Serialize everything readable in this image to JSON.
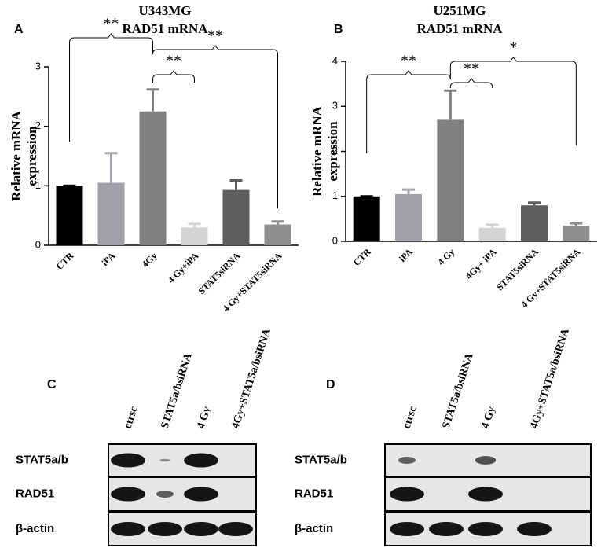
{
  "chart_data": [
    {
      "type": "bar",
      "panel_label": "A",
      "title": "U343MG",
      "subtitle": "RAD51 mRNA",
      "ylabel": [
        "Relative mRNA",
        "expression"
      ],
      "categories": [
        "CTR",
        "iPA",
        "4Gy",
        "4 Gy+iPA",
        "STAT5siRNA",
        "4 Gy+STAT5siRNA"
      ],
      "values": [
        1.0,
        1.05,
        2.25,
        0.3,
        0.93,
        0.35
      ],
      "errors": [
        0,
        0.5,
        0.37,
        0.06,
        0.16,
        0.05
      ],
      "colors": [
        "#000000",
        "#a0a0a8",
        "#808080",
        "#d4d4d4",
        "#5e5e5e",
        "#8e8e8e"
      ],
      "ylim": [
        0,
        3
      ],
      "yticks": [
        0,
        1,
        2,
        3
      ],
      "significance": [
        "**",
        "**",
        "**"
      ]
    },
    {
      "type": "bar",
      "panel_label": "B",
      "title": "U251MG",
      "subtitle": "RAD51 mRNA",
      "ylabel": [
        "Relative mRNA",
        "expression"
      ],
      "categories": [
        "CTR",
        "iPA",
        "4 Gy",
        "4Gy+ iPA",
        "STAT5siRNA",
        "4 Gy+STAT5siRNA"
      ],
      "values": [
        1.0,
        1.05,
        2.7,
        0.3,
        0.8,
        0.35
      ],
      "errors": [
        0,
        0.1,
        0.65,
        0.07,
        0.06,
        0.05
      ],
      "colors": [
        "#000000",
        "#a0a0a8",
        "#808080",
        "#d4d4d4",
        "#5e5e5e",
        "#8e8e8e"
      ],
      "ylim": [
        0,
        4
      ],
      "yticks": [
        0,
        1,
        2,
        3,
        4
      ],
      "significance": [
        "**",
        "**",
        "*"
      ]
    }
  ],
  "blots": [
    {
      "panel_label": "C",
      "lanes": [
        "ctrsc",
        "STAT5a/bsiRNA",
        "4 Gy",
        "4Gy+STAT5a/bsiRNA"
      ],
      "rows": [
        "STAT5a/b",
        "RAD51",
        "β-actin"
      ]
    },
    {
      "panel_label": "D",
      "lanes": [
        "ctrsc",
        "STAT5a/bsiRNA",
        "4 Gy",
        "4Gy+STAT5a/bsiRNA"
      ],
      "rows": [
        "STAT5a/b",
        "RAD51",
        "β-actin"
      ]
    }
  ]
}
